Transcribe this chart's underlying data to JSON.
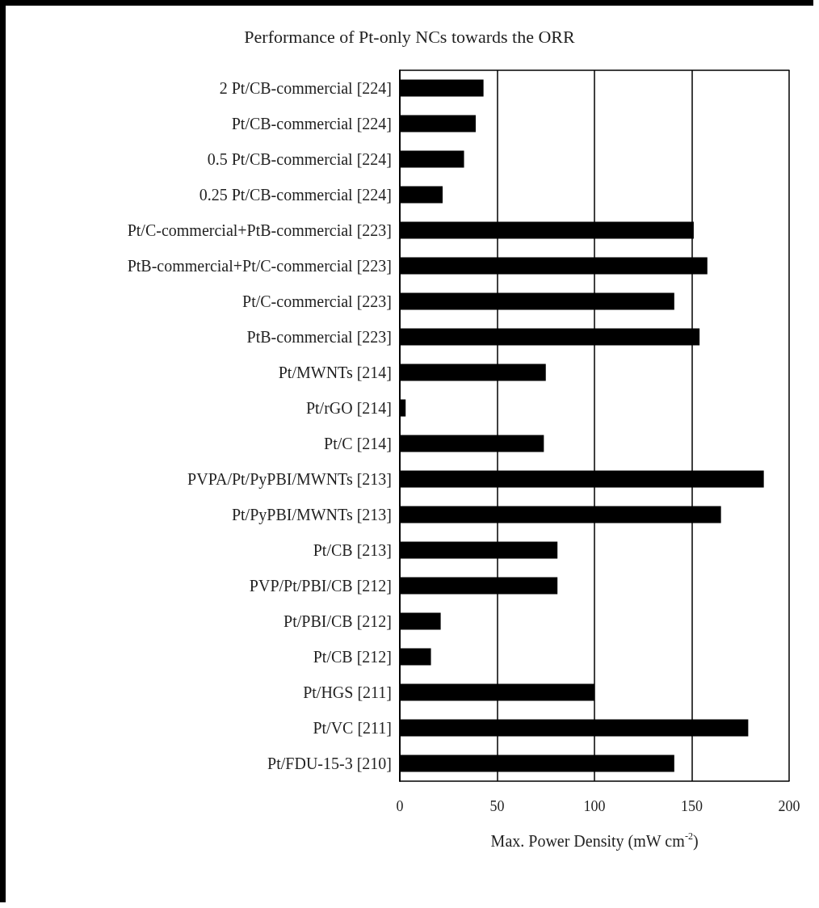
{
  "chart_data": {
    "type": "bar",
    "orientation": "horizontal",
    "title": "Performance of Pt-only NCs towards the ORR",
    "xlabel": "Max. Power Density (mW cm$^{-2}$)",
    "categories": [
      "2 Pt/CB-commercial [224]",
      "Pt/CB-commercial [224]",
      "0.5 Pt/CB-commercial [224]",
      "0.25 Pt/CB-commercial [224]",
      "Pt/C-commercial+PtB-commercial [223]",
      "PtB-commercial+Pt/C-commercial [223]",
      "Pt/C-commercial [223]",
      "PtB-commercial [223]",
      "Pt/MWNTs [214]",
      "Pt/rGO [214]",
      "Pt/C [214]",
      "PVPA/Pt/PyPBI/MWNTs [213]",
      "Pt/PyPBI/MWNTs [213]",
      "Pt/CB [213]",
      "PVP/Pt/PBI/CB [212]",
      "Pt/PBI/CB [212]",
      "Pt/CB [212]",
      "Pt/HGS [211]",
      "Pt/VC [211]",
      "Pt/FDU-15-3 [210]"
    ],
    "values": [
      43,
      39,
      33,
      22,
      151,
      158,
      141,
      154,
      75,
      3,
      74,
      187,
      165,
      81,
      81,
      21,
      16,
      100,
      179,
      141
    ],
    "color": "#000000",
    "xlim": [
      0,
      200
    ],
    "xticks": [
      0,
      50,
      100,
      150,
      200
    ],
    "grid": "x"
  }
}
